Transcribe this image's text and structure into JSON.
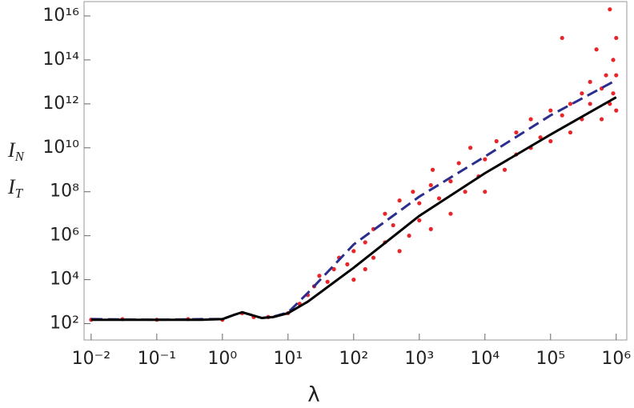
{
  "chart_data": {
    "type": "scatter",
    "xscale": "log",
    "yscale": "log",
    "xlabel": "λ",
    "ylabels": [
      {
        "base": "I",
        "sub": "N"
      },
      {
        "base": "I",
        "sub": "T"
      }
    ],
    "xlim": [
      0.0078,
      1450000
    ],
    "ylim": [
      18,
      45000000000000000
    ],
    "xticks": [
      {
        "value": 0.01,
        "label": "10⁻²"
      },
      {
        "value": 0.1,
        "label": "10⁻¹"
      },
      {
        "value": 1,
        "label": "10⁰"
      },
      {
        "value": 10,
        "label": "10¹"
      },
      {
        "value": 100,
        "label": "10²"
      },
      {
        "value": 1000,
        "label": "10³"
      },
      {
        "value": 10000,
        "label": "10⁴"
      },
      {
        "value": 100000,
        "label": "10⁵"
      },
      {
        "value": 1000000,
        "label": "10⁶"
      }
    ],
    "yticks": [
      {
        "value": 100,
        "label": "10²"
      },
      {
        "value": 10000,
        "label": "10⁴"
      },
      {
        "value": 1000000,
        "label": "10⁶"
      },
      {
        "value": 100000000,
        "label": "10⁸"
      },
      {
        "value": 10000000000,
        "label": "10¹⁰"
      },
      {
        "value": 1000000000000,
        "label": "10¹²"
      },
      {
        "value": 100000000000000,
        "label": "10¹⁴"
      },
      {
        "value": 10000000000000000,
        "label": "10¹⁶"
      }
    ],
    "series": [
      {
        "kind": "scatter",
        "color": "#e8262a",
        "x": [
          0.01,
          0.03,
          0.1,
          0.3,
          1,
          2,
          3,
          5,
          10,
          15,
          20,
          25,
          30,
          40,
          50,
          60,
          80,
          100,
          100,
          150,
          150,
          200,
          200,
          300,
          300,
          400,
          500,
          500,
          700,
          800,
          1000,
          1000,
          1500,
          1500,
          1600,
          2000,
          3000,
          3000,
          4000,
          5000,
          6000,
          8000,
          10000,
          10000,
          15000,
          20000,
          30000,
          30000,
          50000,
          50000,
          70000,
          100000,
          100000,
          150000,
          150000,
          200000,
          200000,
          300000,
          300000,
          400000,
          400000,
          500000,
          600000,
          600000,
          700000,
          800000,
          800000,
          900000,
          900000,
          1000000,
          1000000,
          1000000
        ],
        "values": [
          150,
          160,
          150,
          160,
          150,
          300,
          200,
          200,
          300,
          800,
          2000,
          5000,
          15000,
          8000,
          30000,
          100000,
          50000,
          200000,
          10000,
          500000,
          30000,
          2000000,
          100000,
          500000,
          10000000,
          3000000,
          200000,
          40000000,
          1000000,
          100000000,
          5000000,
          30000000,
          200000000,
          2000000,
          1000000000,
          50000000,
          300000000,
          10000000,
          2000000000,
          100000000,
          10000000000,
          500000000,
          3000000000,
          100000000,
          20000000000,
          1000000000,
          50000000000,
          5000000000,
          200000000000,
          10000000000,
          30000000000,
          500000000000,
          20000000000,
          1000000000000000,
          300000000000,
          1000000000000,
          50000000000,
          3000000000000,
          200000000000,
          10000000000000,
          1000000000000,
          300000000000000,
          5000000000000,
          200000000000,
          20000000000000,
          20000000000000000,
          1000000000000,
          100000000000000,
          3000000000000,
          1000000000000000,
          500000000000,
          20000000000000
        ]
      },
      {
        "kind": "line",
        "color": "#2b2e8c",
        "dash": true,
        "x": [
          0.01,
          0.1,
          0.5,
          1,
          1.5,
          2,
          3,
          4,
          6,
          10,
          20,
          100,
          1000,
          10000,
          100000,
          1000000
        ],
        "values": [
          160,
          150,
          160,
          160,
          250,
          330,
          230,
          180,
          210,
          320,
          2500,
          400000,
          60000000,
          4000000000,
          300000000000,
          12000000000000
        ]
      },
      {
        "kind": "line",
        "color": "#000000",
        "dash": false,
        "x": [
          0.01,
          0.1,
          0.5,
          1,
          1.5,
          2,
          3,
          4,
          6,
          10,
          20,
          100,
          1000,
          10000,
          100000,
          1000000
        ],
        "values": [
          150,
          150,
          150,
          160,
          250,
          330,
          230,
          180,
          200,
          300,
          1000,
          35000,
          8000000,
          700000000,
          40000000000,
          2000000000000
        ]
      }
    ]
  }
}
